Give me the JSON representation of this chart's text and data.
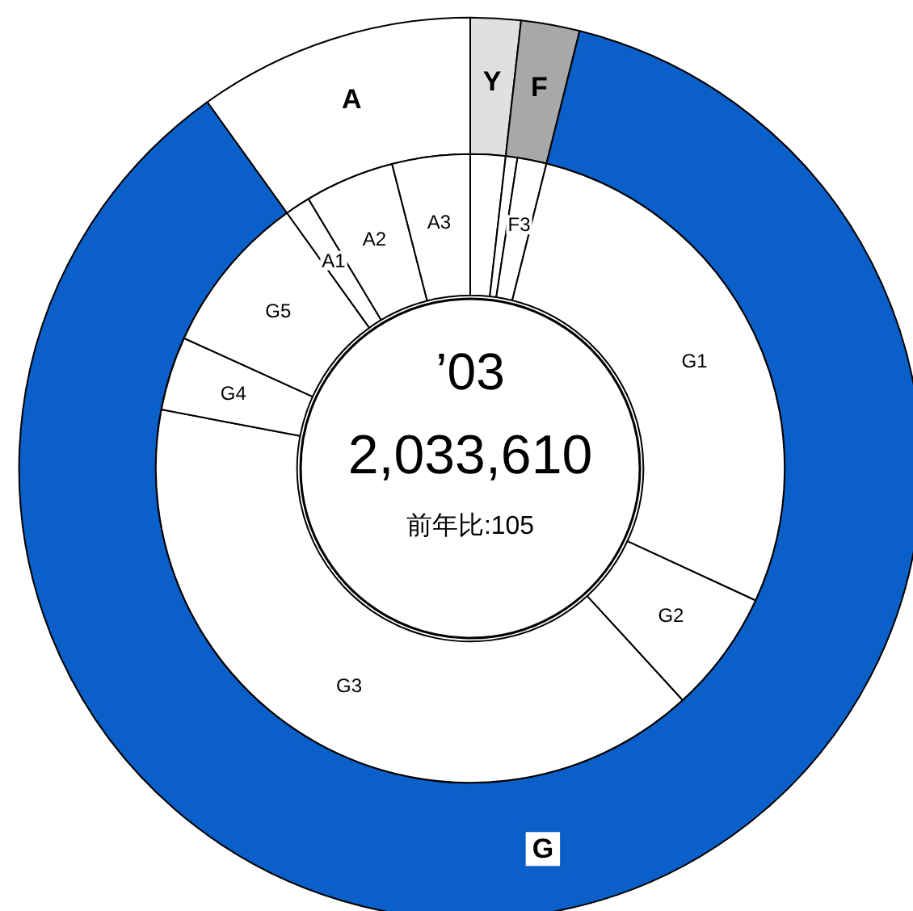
{
  "chart_data": [
    {
      "type": "donut",
      "categories": [
        "Y",
        "F",
        "G",
        "A"
      ],
      "values": [
        1.8,
        2.1,
        86.2,
        9.9
      ],
      "colors": [
        "#e0e0e0",
        "#a8a8a8",
        "#0a5fc8",
        "#ffffff"
      ]
    },
    {
      "type": "donut",
      "categories": [
        null,
        null,
        "F3",
        "G1",
        "G2",
        "G3",
        "G4",
        "G5",
        "A1",
        "A2",
        "A3"
      ],
      "values": [
        1.8,
        0.6,
        1.5,
        28.0,
        6.3,
        39.8,
        3.8,
        8.3,
        1.3,
        4.6,
        4.0
      ],
      "colors": [
        "#ffffff",
        "#ffffff",
        "#ffffff",
        "#ffffff",
        "#ffffff",
        "#ffffff",
        "#ffffff",
        "#ffffff",
        "#ffffff",
        "#ffffff",
        "#ffffff"
      ],
      "annotations": [
        "’03",
        "2,033,610",
        "前年比:105"
      ]
    }
  ]
}
